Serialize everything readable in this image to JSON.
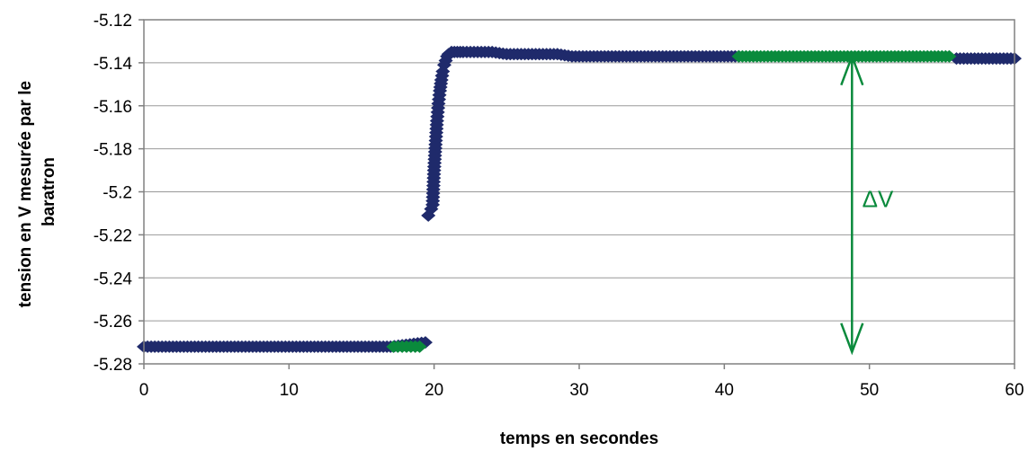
{
  "chart_data": {
    "type": "scatter",
    "xlabel": "temps en secondes",
    "ylabel_lines": [
      "tension en V mesurée par le",
      "baratron"
    ],
    "xlim": [
      0,
      60
    ],
    "ylim": [
      -5.28,
      -5.12
    ],
    "x_ticks": [
      0,
      10,
      20,
      30,
      40,
      50,
      60
    ],
    "x_tick_labels": [
      "0",
      "10",
      "20",
      "30",
      "40",
      "50",
      "60"
    ],
    "y_ticks": [
      -5.12,
      -5.14,
      -5.16,
      -5.18,
      -5.2,
      -5.22,
      -5.24,
      -5.26,
      -5.28
    ],
    "y_tick_labels": [
      "-5.12",
      "-5.14",
      "-5.16",
      "-5.18",
      "-5.2",
      "-5.22",
      "-5.24",
      "-5.26",
      "-5.28"
    ],
    "grid": "horizontal",
    "legend": "none",
    "colors": {
      "main": "#1f2a6b",
      "highlight": "#0a8a3c"
    },
    "series": [
      {
        "role": "main",
        "color": "#1f2a6b",
        "marker": "diamond",
        "x": [
          0,
          0.5,
          1,
          1.5,
          2,
          2.5,
          3,
          3.5,
          4,
          4.5,
          5,
          5.5,
          6,
          6.5,
          7,
          7.5,
          8,
          8.5,
          9,
          9.5,
          10,
          10.5,
          11,
          11.5,
          12,
          12.5,
          13,
          13.5,
          14,
          14.5,
          15,
          15.5,
          16,
          16.5,
          17,
          19.4,
          19.6,
          19.8,
          19.9,
          20.0,
          20.1,
          20.2,
          20.3,
          20.4,
          20.5,
          20.6,
          20.7,
          20.8,
          20.9,
          21.0,
          21.2,
          21.4,
          21.6,
          21.8,
          22.0,
          22.5,
          23,
          23.5,
          24,
          24.5,
          25,
          25.5,
          26,
          26.5,
          27,
          27.5,
          28,
          28.5,
          29,
          29.5,
          30,
          30.5,
          31,
          31.5,
          32,
          32.5,
          33,
          33.5,
          34,
          34.5,
          35,
          35.5,
          36,
          36.5,
          37,
          37.5,
          38,
          38.5,
          39,
          39.5,
          40,
          40.5,
          41,
          56,
          56.5,
          57,
          57.5,
          58,
          58.5,
          59,
          59.5,
          60
        ],
        "y": [
          -5.272,
          -5.272,
          -5.272,
          -5.272,
          -5.272,
          -5.272,
          -5.272,
          -5.272,
          -5.272,
          -5.272,
          -5.272,
          -5.272,
          -5.272,
          -5.272,
          -5.272,
          -5.272,
          -5.272,
          -5.272,
          -5.272,
          -5.272,
          -5.272,
          -5.272,
          -5.272,
          -5.272,
          -5.272,
          -5.272,
          -5.272,
          -5.272,
          -5.272,
          -5.272,
          -5.272,
          -5.272,
          -5.272,
          -5.272,
          -5.272,
          -5.27,
          -5.211,
          -5.208,
          -5.206,
          -5.19,
          -5.178,
          -5.167,
          -5.159,
          -5.153,
          -5.148,
          -5.144,
          -5.141,
          -5.139,
          -5.137,
          -5.136,
          -5.135,
          -5.135,
          -5.135,
          -5.135,
          -5.135,
          -5.135,
          -5.135,
          -5.135,
          -5.135,
          -5.1355,
          -5.136,
          -5.136,
          -5.136,
          -5.136,
          -5.136,
          -5.136,
          -5.136,
          -5.136,
          -5.1365,
          -5.137,
          -5.137,
          -5.137,
          -5.137,
          -5.137,
          -5.137,
          -5.137,
          -5.137,
          -5.137,
          -5.137,
          -5.137,
          -5.137,
          -5.137,
          -5.137,
          -5.137,
          -5.137,
          -5.137,
          -5.137,
          -5.137,
          -5.137,
          -5.137,
          -5.137,
          -5.137,
          -5.137,
          -5.138,
          -5.138,
          -5.138,
          -5.138,
          -5.138,
          -5.138,
          -5.138,
          -5.138,
          -5.138
        ]
      },
      {
        "role": "highlight",
        "color": "#0a8a3c",
        "marker": "diamond",
        "x": [
          17.2,
          17.5,
          17.8,
          18.1,
          18.4,
          18.7,
          19.0,
          41,
          41.5,
          42,
          42.5,
          43,
          43.5,
          44,
          44.5,
          45,
          45.5,
          46,
          46.5,
          47,
          47.5,
          48,
          48.5,
          49,
          49.5,
          50,
          50.5,
          51,
          51.5,
          52,
          52.5,
          53,
          53.5,
          54,
          54.5,
          55,
          55.5
        ],
        "y": [
          -5.272,
          -5.272,
          -5.272,
          -5.272,
          -5.272,
          -5.272,
          -5.272,
          -5.137,
          -5.137,
          -5.137,
          -5.137,
          -5.137,
          -5.137,
          -5.137,
          -5.137,
          -5.137,
          -5.137,
          -5.137,
          -5.137,
          -5.137,
          -5.137,
          -5.137,
          -5.137,
          -5.137,
          -5.137,
          -5.137,
          -5.137,
          -5.137,
          -5.137,
          -5.137,
          -5.137,
          -5.137,
          -5.137,
          -5.137,
          -5.137,
          -5.137,
          -5.137
        ]
      }
    ],
    "annotation": {
      "label": "ΔV",
      "x": 48.8,
      "y_top": -5.137,
      "y_bottom": -5.2745,
      "label_x": 49.5,
      "label_y": -5.207,
      "color": "#0a8a3c"
    }
  }
}
